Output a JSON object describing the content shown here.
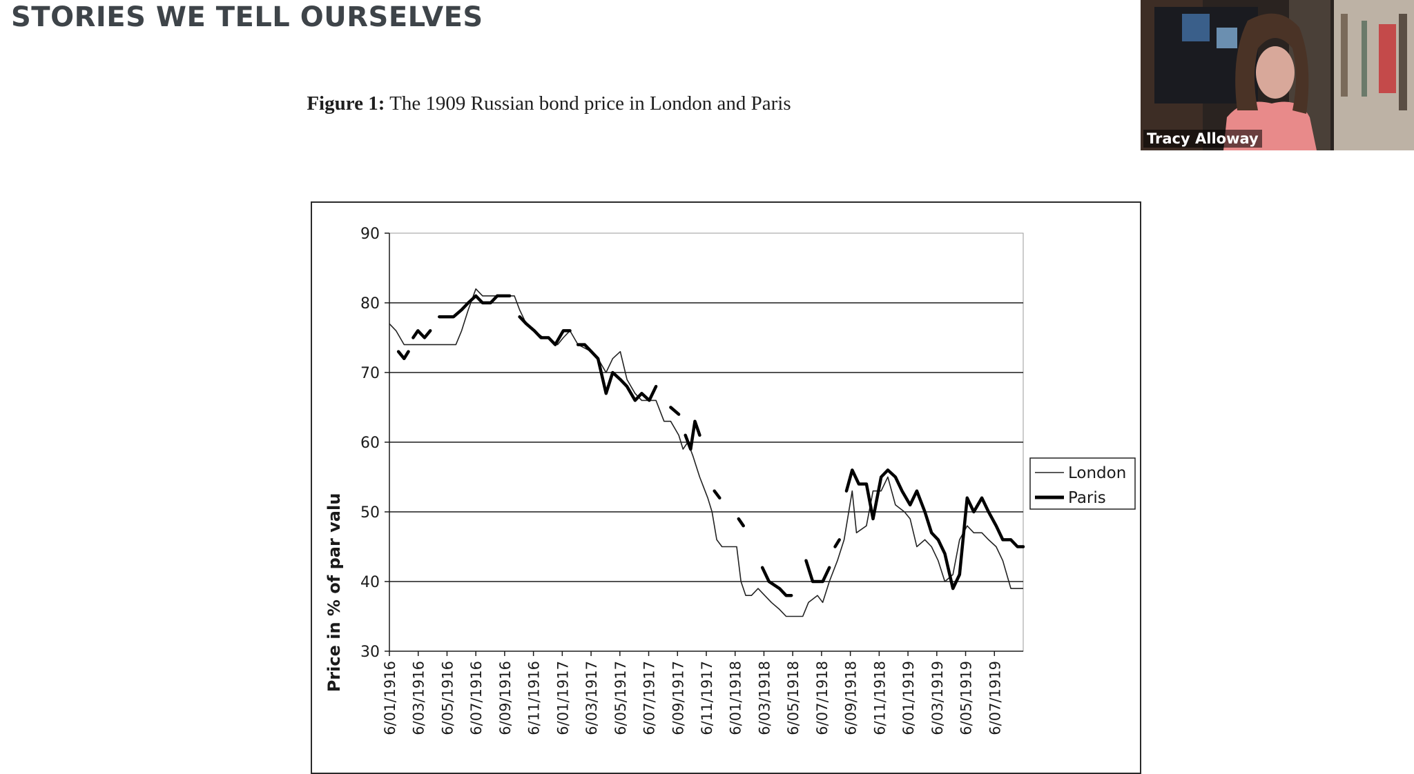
{
  "slide": {
    "title": "STORIES WE TELL OURSELVES",
    "caption_bold": "Figure 1:",
    "caption_text": " The 1909 Russian bond price in London and Paris"
  },
  "video": {
    "participant_name": "Tracy Alloway"
  },
  "chart_data": {
    "type": "line",
    "title": "",
    "xlabel": "",
    "ylabel": "Price in % of par valu",
    "ylim": [
      30,
      90
    ],
    "yticks": [
      30,
      40,
      50,
      60,
      70,
      80,
      90
    ],
    "grid": "horizontal",
    "legend_position": "right",
    "x_tick_labels": [
      "6/01/1916",
      "6/03/1916",
      "6/05/1916",
      "6/07/1916",
      "6/09/1916",
      "6/11/1916",
      "6/01/1917",
      "6/03/1917",
      "6/05/1917",
      "6/07/1917",
      "6/09/1917",
      "6/11/1917",
      "6/01/1918",
      "6/03/1918",
      "6/05/1918",
      "6/07/1918",
      "6/09/1918",
      "6/11/1918",
      "6/01/1919",
      "6/03/1919",
      "6/05/1919",
      "6/07/1919"
    ],
    "x_range": [
      "1916-01-06",
      "1919-09-01"
    ],
    "series": [
      {
        "name": "London",
        "style": "thin",
        "color": "#222222",
        "points": [
          [
            "1916-01-06",
            77
          ],
          [
            "1916-01-20",
            76
          ],
          [
            "1916-02-06",
            74
          ],
          [
            "1916-03-06",
            74
          ],
          [
            "1916-04-06",
            74
          ],
          [
            "1916-05-06",
            74
          ],
          [
            "1916-05-25",
            74
          ],
          [
            "1916-06-06",
            76
          ],
          [
            "1916-06-20",
            79
          ],
          [
            "1916-07-06",
            82
          ],
          [
            "1916-07-20",
            81
          ],
          [
            "1916-08-06",
            81
          ],
          [
            "1916-09-06",
            81
          ],
          [
            "1916-09-25",
            81
          ],
          [
            "1916-10-06",
            79
          ],
          [
            "1916-10-20",
            77
          ],
          [
            "1916-11-06",
            76
          ],
          [
            "1916-11-25",
            75
          ],
          [
            "1916-12-06",
            75
          ],
          [
            "1916-12-25",
            74
          ],
          [
            "1917-01-06",
            75
          ],
          [
            "1917-01-20",
            76
          ],
          [
            "1917-02-06",
            74
          ],
          [
            "1917-03-06",
            73
          ],
          [
            "1917-03-20",
            72
          ],
          [
            "1917-04-06",
            70
          ],
          [
            "1917-04-20",
            72
          ],
          [
            "1917-05-06",
            73
          ],
          [
            "1917-05-20",
            69
          ],
          [
            "1917-06-06",
            67
          ],
          [
            "1917-06-20",
            66
          ],
          [
            "1917-07-06",
            66
          ],
          [
            "1917-07-20",
            66
          ],
          [
            "1917-08-06",
            63
          ],
          [
            "1917-08-20",
            63
          ],
          [
            "1917-09-06",
            61
          ],
          [
            "1917-09-15",
            59
          ],
          [
            "1917-09-25",
            60
          ],
          [
            "1917-10-06",
            58
          ],
          [
            "1917-10-20",
            55
          ],
          [
            "1917-11-06",
            52
          ],
          [
            "1917-11-15",
            50
          ],
          [
            "1917-11-25",
            46
          ],
          [
            "1917-12-06",
            45
          ],
          [
            "1917-12-25",
            45
          ],
          [
            "1918-01-06",
            45
          ],
          [
            "1918-01-15",
            40
          ],
          [
            "1918-01-25",
            38
          ],
          [
            "1918-02-06",
            38
          ],
          [
            "1918-02-20",
            39
          ],
          [
            "1918-03-06",
            38
          ],
          [
            "1918-03-20",
            37
          ],
          [
            "1918-04-06",
            36
          ],
          [
            "1918-04-20",
            35
          ],
          [
            "1918-05-06",
            35
          ],
          [
            "1918-05-25",
            35
          ],
          [
            "1918-06-06",
            37
          ],
          [
            "1918-06-25",
            38
          ],
          [
            "1918-07-06",
            37
          ],
          [
            "1918-07-20",
            40
          ],
          [
            "1918-08-06",
            43
          ],
          [
            "1918-08-20",
            46
          ],
          [
            "1918-09-06",
            53
          ],
          [
            "1918-09-15",
            47
          ],
          [
            "1918-10-06",
            48
          ],
          [
            "1918-10-20",
            53
          ],
          [
            "1918-11-06",
            53
          ],
          [
            "1918-11-20",
            55
          ],
          [
            "1918-12-06",
            51
          ],
          [
            "1918-12-25",
            50
          ],
          [
            "1919-01-06",
            49
          ],
          [
            "1919-01-20",
            45
          ],
          [
            "1919-02-06",
            46
          ],
          [
            "1919-02-20",
            45
          ],
          [
            "1919-03-06",
            43
          ],
          [
            "1919-03-20",
            40
          ],
          [
            "1919-04-06",
            41
          ],
          [
            "1919-04-20",
            46
          ],
          [
            "1919-05-06",
            48
          ],
          [
            "1919-05-20",
            47
          ],
          [
            "1919-06-06",
            47
          ],
          [
            "1919-06-20",
            46
          ],
          [
            "1919-07-06",
            45
          ],
          [
            "1919-07-20",
            43
          ],
          [
            "1919-08-06",
            39
          ],
          [
            "1919-08-20",
            39
          ],
          [
            "1919-09-01",
            39
          ]
        ]
      },
      {
        "name": "Paris",
        "style": "thick",
        "color": "#000000",
        "segments": [
          [
            [
              "1916-01-25",
              73
            ],
            [
              "1916-02-06",
              72
            ],
            [
              "1916-02-15",
              73
            ]
          ],
          [
            [
              "1916-02-25",
              75
            ],
            [
              "1916-03-06",
              76
            ],
            [
              "1916-03-20",
              75
            ],
            [
              "1916-04-01",
              76
            ]
          ],
          [
            [
              "1916-04-20",
              78
            ],
            [
              "1916-05-06",
              78
            ],
            [
              "1916-05-20",
              78
            ],
            [
              "1916-06-06",
              79
            ],
            [
              "1916-06-20",
              80
            ],
            [
              "1916-07-06",
              81
            ],
            [
              "1916-07-20",
              80
            ],
            [
              "1916-08-06",
              80
            ],
            [
              "1916-08-20",
              81
            ],
            [
              "1916-09-06",
              81
            ],
            [
              "1916-09-15",
              81
            ]
          ],
          [
            [
              "1916-10-06",
              78
            ],
            [
              "1916-10-20",
              77
            ],
            [
              "1916-11-06",
              76
            ],
            [
              "1916-11-20",
              75
            ],
            [
              "1916-12-06",
              75
            ],
            [
              "1916-12-20",
              74
            ],
            [
              "1917-01-06",
              76
            ],
            [
              "1917-01-20",
              76
            ]
          ],
          [
            [
              "1917-02-06",
              74
            ],
            [
              "1917-02-20",
              74
            ],
            [
              "1917-03-06",
              73
            ],
            [
              "1917-03-20",
              72
            ],
            [
              "1917-04-06",
              67
            ],
            [
              "1917-04-20",
              70
            ],
            [
              "1917-05-06",
              69
            ],
            [
              "1917-05-20",
              68
            ],
            [
              "1917-06-06",
              66
            ],
            [
              "1917-06-20",
              67
            ],
            [
              "1917-07-06",
              66
            ],
            [
              "1917-07-20",
              68
            ]
          ],
          [
            [
              "1917-08-20",
              65
            ],
            [
              "1917-09-06",
              64
            ]
          ],
          [
            [
              "1917-09-20",
              61
            ],
            [
              "1917-10-01",
              59
            ],
            [
              "1917-10-10",
              63
            ],
            [
              "1917-10-20",
              61
            ]
          ],
          [
            [
              "1917-11-20",
              53
            ],
            [
              "1917-12-01",
              52
            ]
          ],
          [
            [
              "1918-01-10",
              49
            ],
            [
              "1918-01-20",
              48
            ]
          ],
          [
            [
              "1918-03-01",
              42
            ],
            [
              "1918-03-15",
              40
            ],
            [
              "1918-04-06",
              39
            ],
            [
              "1918-04-20",
              38
            ],
            [
              "1918-05-01",
              38
            ]
          ],
          [
            [
              "1918-06-01",
              43
            ],
            [
              "1918-06-15",
              40
            ],
            [
              "1918-07-06",
              40
            ],
            [
              "1918-07-20",
              42
            ]
          ],
          [
            [
              "1918-08-01",
              45
            ],
            [
              "1918-08-10",
              46
            ]
          ],
          [
            [
              "1918-08-25",
              53
            ],
            [
              "1918-09-06",
              56
            ],
            [
              "1918-09-20",
              54
            ],
            [
              "1918-10-06",
              54
            ],
            [
              "1918-10-20",
              49
            ],
            [
              "1918-11-06",
              55
            ],
            [
              "1918-11-20",
              56
            ],
            [
              "1918-12-06",
              55
            ],
            [
              "1918-12-20",
              53
            ],
            [
              "1919-01-06",
              51
            ],
            [
              "1919-01-20",
              53
            ],
            [
              "1919-02-06",
              50
            ],
            [
              "1919-02-20",
              47
            ],
            [
              "1919-03-06",
              46
            ],
            [
              "1919-03-20",
              44
            ],
            [
              "1919-04-06",
              39
            ],
            [
              "1919-04-20",
              41
            ],
            [
              "1919-05-06",
              52
            ],
            [
              "1919-05-20",
              50
            ],
            [
              "1919-06-06",
              52
            ],
            [
              "1919-06-20",
              50
            ],
            [
              "1919-07-06",
              48
            ],
            [
              "1919-07-20",
              46
            ],
            [
              "1919-08-06",
              46
            ],
            [
              "1919-08-20",
              45
            ],
            [
              "1919-09-01",
              45
            ]
          ]
        ]
      }
    ]
  }
}
